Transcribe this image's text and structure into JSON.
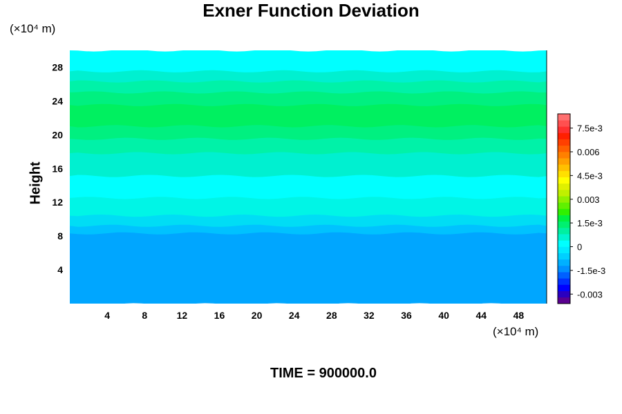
{
  "chart_data": {
    "type": "heatmap",
    "title": "Exner Function Deviation",
    "ylabel": "Height",
    "x_unit": "(×10⁴ m)",
    "y_unit": "(×10⁴ m)",
    "xlim": [
      0,
      51
    ],
    "ylim": [
      0,
      30
    ],
    "x_ticks": [
      "4",
      "8",
      "12",
      "16",
      "20",
      "24",
      "28",
      "32",
      "36",
      "40",
      "44",
      "48"
    ],
    "y_ticks": [
      "4",
      "8",
      "12",
      "16",
      "20",
      "24",
      "28"
    ],
    "field_bands": [
      {
        "y0": 0,
        "y1": 8.4,
        "value": -0.0006,
        "color": "#00a6ff"
      },
      {
        "y0": 8.4,
        "y1": 9.3,
        "value": -0.0003,
        "color": "#00c2ff"
      },
      {
        "y0": 9.3,
        "y1": 10.5,
        "value": 0.0,
        "color": "#00ddf5"
      },
      {
        "y0": 10.5,
        "y1": 12.6,
        "value": 0.0003,
        "color": "#00f5e6"
      },
      {
        "y0": 12.6,
        "y1": 15.2,
        "value": 0.0006,
        "color": "#00ffff"
      },
      {
        "y0": 15.2,
        "y1": 17.9,
        "value": 0.0009,
        "color": "#00f0d0"
      },
      {
        "y0": 17.9,
        "y1": 19.6,
        "value": 0.0012,
        "color": "#00f2a8"
      },
      {
        "y0": 19.6,
        "y1": 21.1,
        "value": 0.0015,
        "color": "#00f080"
      },
      {
        "y0": 21.1,
        "y1": 23.6,
        "value": 0.0018,
        "color": "#00f060"
      },
      {
        "y0": 23.6,
        "y1": 25.1,
        "value": 0.0015,
        "color": "#00f080"
      },
      {
        "y0": 25.1,
        "y1": 26.4,
        "value": 0.0012,
        "color": "#00f2a8"
      },
      {
        "y0": 26.4,
        "y1": 27.6,
        "value": 0.0009,
        "color": "#00f0d0"
      },
      {
        "y0": 27.6,
        "y1": 30,
        "value": 0.0006,
        "color": "#00ffff"
      }
    ],
    "colorbar": {
      "labels": [
        "7.5e-3",
        "0.006",
        "4.5e-3",
        "0.003",
        "1.5e-3",
        "0",
        "-1.5e-3",
        "-0.003"
      ],
      "label_values": [
        0.0075,
        0.006,
        0.0045,
        0.003,
        0.0015,
        0,
        -0.0015,
        -0.003
      ],
      "min": -0.0036,
      "max": 0.0084,
      "colors": [
        "#5a0090",
        "#2a00c0",
        "#0000ff",
        "#0030ff",
        "#0060ff",
        "#0090ff",
        "#00b0ff",
        "#00d0ff",
        "#00eaff",
        "#00ffff",
        "#00f5d0",
        "#00f0a0",
        "#00f070",
        "#00f040",
        "#30f000",
        "#60f000",
        "#90f000",
        "#c0f000",
        "#e0f000",
        "#ffff00",
        "#ffe000",
        "#ffc000",
        "#ffa000",
        "#ff8000",
        "#ff6000",
        "#ff4000",
        "#ff2000",
        "#ff3030",
        "#ff5050",
        "#ff7070"
      ]
    }
  },
  "footer": {
    "time_label": "TIME = 900000.0"
  }
}
